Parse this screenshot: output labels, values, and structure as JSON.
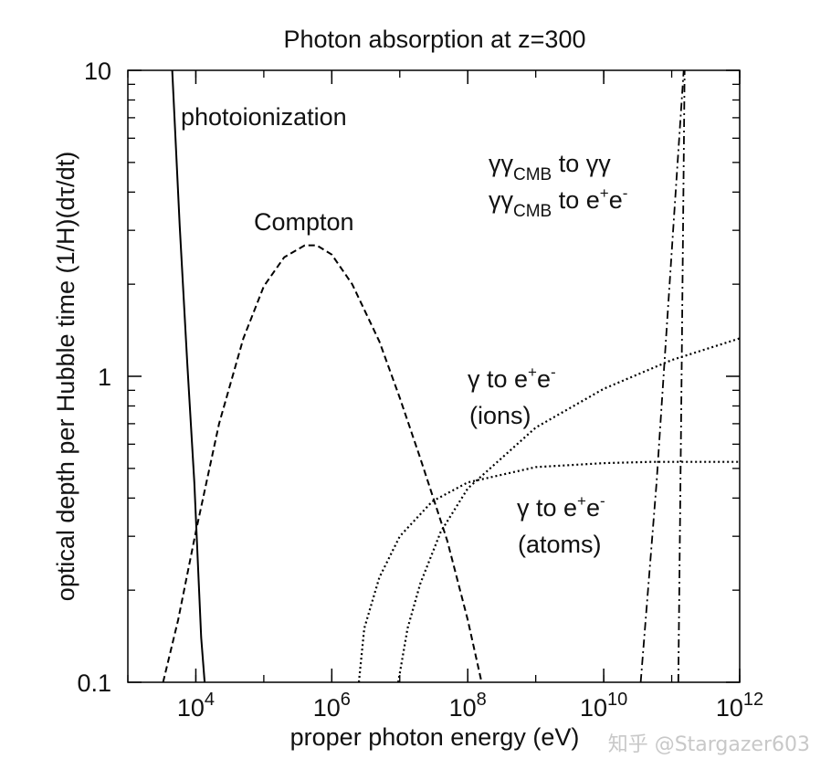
{
  "chart_data": {
    "type": "line",
    "title": "Photon absorption at z=300",
    "xlabel": "proper photon energy (eV)",
    "ylabel": "optical depth per Hubble time (1/H)(dτ/dt)",
    "xscale": "log",
    "yscale": "log",
    "xlim": [
      1000,
      1000000000000
    ],
    "ylim": [
      0.1,
      10
    ],
    "x_ticks": [
      {
        "value": 10000,
        "base": "10",
        "exp": "4"
      },
      {
        "value": 1000000,
        "base": "10",
        "exp": "6"
      },
      {
        "value": 100000000,
        "base": "10",
        "exp": "8"
      },
      {
        "value": 10000000000,
        "base": "10",
        "exp": "10"
      },
      {
        "value": 1000000000000,
        "base": "10",
        "exp": "12"
      }
    ],
    "y_ticks": [
      {
        "value": 0.1,
        "label": "0.1"
      },
      {
        "value": 1,
        "label": "1"
      },
      {
        "value": 10,
        "label": "10"
      }
    ],
    "grid": false,
    "legend": "none",
    "series": [
      {
        "style": "solid",
        "x": [
          4500,
          5800,
          7500,
          9500,
          12000,
          13500
        ],
        "y": [
          10.0,
          3.1,
          1.1,
          0.45,
          0.14,
          0.1
        ]
      },
      {
        "style": "dashed",
        "x": [
          3300,
          5500,
          10000,
          22000,
          50000,
          100000,
          200000,
          400000,
          600000,
          1000000,
          2000000,
          5000000,
          10000000,
          20000000,
          50000000,
          100000000,
          160000000
        ],
        "y": [
          0.1,
          0.16,
          0.31,
          0.7,
          1.33,
          1.97,
          2.45,
          2.68,
          2.68,
          2.5,
          2.0,
          1.3,
          0.85,
          0.54,
          0.29,
          0.16,
          0.1
        ]
      },
      {
        "style": "dotted",
        "x": [
          2500000,
          3000000,
          5000000,
          10000000,
          30000000,
          100000000,
          1000000000,
          10000000000,
          50000000000,
          1000000000000
        ],
        "y": [
          0.1,
          0.15,
          0.22,
          0.3,
          0.39,
          0.45,
          0.505,
          0.52,
          0.525,
          0.525
        ]
      },
      {
        "style": "dotted",
        "x": [
          9500000,
          13000000,
          20000000,
          40000000,
          100000000,
          1000000000,
          10000000000,
          100000000000,
          1000000000000
        ],
        "y": [
          0.1,
          0.15,
          0.21,
          0.31,
          0.43,
          0.68,
          0.91,
          1.13,
          1.33
        ]
      },
      {
        "style": "dashdot",
        "x": [
          35000000000,
          60000000000,
          110000000000,
          150000000000
        ],
        "y": [
          0.1,
          0.45,
          3.5,
          10.0
        ]
      },
      {
        "style": "dashdot",
        "x": [
          125000000000,
          140000000000,
          155000000000
        ],
        "y": [
          0.1,
          1.0,
          10.0
        ]
      }
    ],
    "annotations": [
      {
        "id": "photoionization",
        "text": "photoionization"
      },
      {
        "id": "compton",
        "text": "Compton"
      },
      {
        "id": "gg1",
        "greek": "γγ",
        "sub": "CMB",
        "rest": " to γγ"
      },
      {
        "id": "gg2",
        "greek": "γγ",
        "sub": "CMB",
        "rest": " to e",
        "sup1": "+",
        "mid": "e",
        "sup2": "-"
      },
      {
        "id": "ions1",
        "text": "γ to e",
        "sup1": "+",
        "mid": "e",
        "sup2": "-"
      },
      {
        "id": "ions2",
        "text": "(ions)"
      },
      {
        "id": "atoms1",
        "text": "γ to e",
        "sup1": "+",
        "mid": "e",
        "sup2": "-"
      },
      {
        "id": "atoms2",
        "text": "(atoms)"
      }
    ]
  },
  "watermark": "知乎 @Stargazer603"
}
